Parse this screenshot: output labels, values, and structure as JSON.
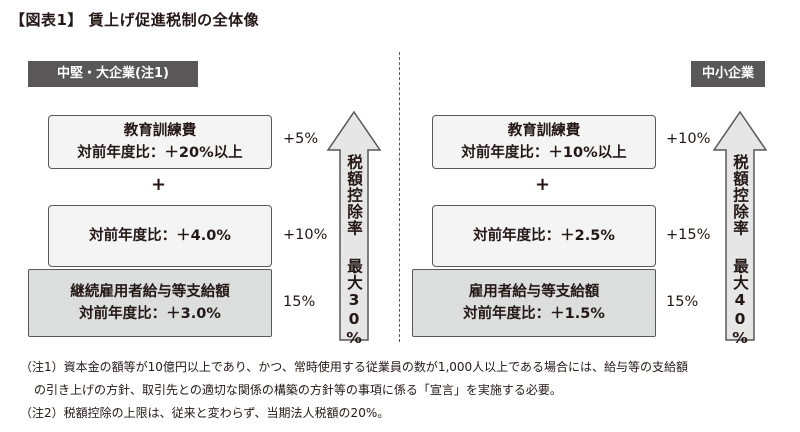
{
  "title": "【図表1】 賃上げ促進税制の全体像",
  "left": {
    "tag": "中堅・大企業(注1)",
    "box1": {
      "line1": "教育訓練費",
      "line2": "対前年度比：＋20%以上"
    },
    "pct1": "+5%",
    "plus": "+",
    "box2": {
      "line1": "対前年度比：＋4.0%"
    },
    "pct2": "+10%",
    "box3": {
      "line1": "継続雇用者給与等支給額",
      "line2": "対前年度比：＋3.0%"
    },
    "pct3": "15%",
    "arrow_text1": "税額控除率",
    "arrow_text2": "最大30%"
  },
  "right": {
    "tag": "中小企業",
    "box1": {
      "line1": "教育訓練費",
      "line2": "対前年度比：＋10%以上"
    },
    "pct1": "+10%",
    "plus": "+",
    "box2": {
      "line1": "対前年度比：＋2.5%"
    },
    "pct2": "+15%",
    "box3": {
      "line1": "雇用者給与等支給額",
      "line2": "対前年度比：＋1.5%"
    },
    "pct3": "15%",
    "arrow_text1": "税額控除率",
    "arrow_text2": "最大40%"
  },
  "notes": [
    "（注1）資本金の額等が10億円以上であり、かつ、常時使用する従業員の数が1,000人以上である場合には、給与等の支給額",
    "の引き上げの方針、取引先との適切な関係の構築の方針等の事項に係る「宣言」を実施する必要。",
    "（注2）税額控除の上限は、従来と変わらず、当期法人税額の20%。"
  ],
  "colors": {
    "tag_bg": "#595757",
    "gray_box": "#dcdddd",
    "arrow_fill": "#e6e6e6",
    "border": "#595757"
  }
}
